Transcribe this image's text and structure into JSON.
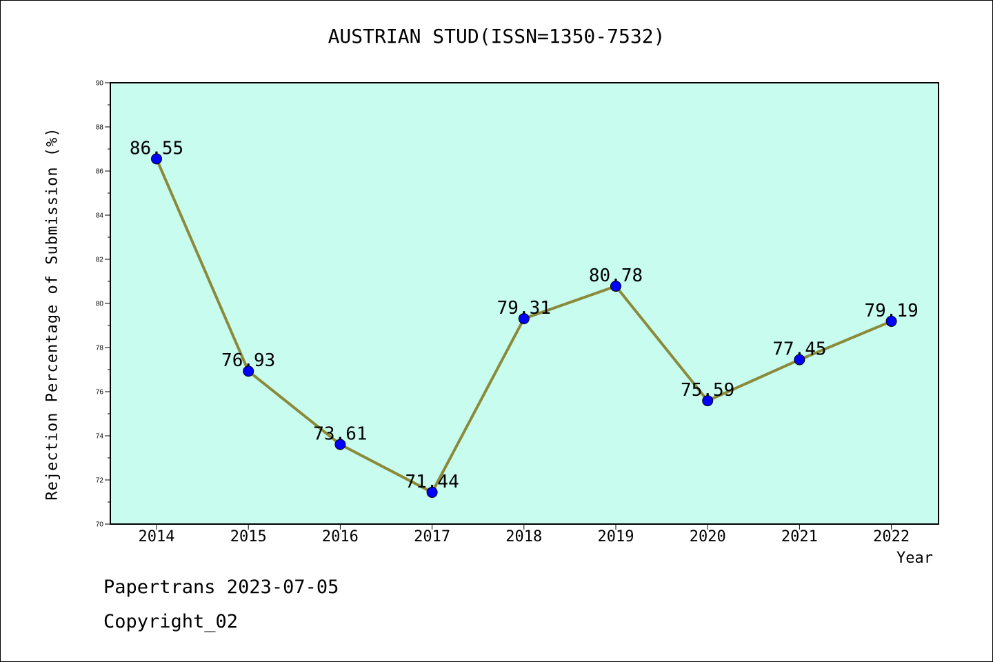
{
  "chart_data": {
    "type": "line",
    "title": "AUSTRIAN STUD(ISSN=1350-7532)",
    "xlabel": "Year",
    "ylabel": "Rejection Percentage of Submission (%)",
    "categories": [
      "2014",
      "2015",
      "2016",
      "2017",
      "2018",
      "2019",
      "2020",
      "2021",
      "2022"
    ],
    "values": [
      86.55,
      76.93,
      73.61,
      71.44,
      79.31,
      80.78,
      75.59,
      77.45,
      79.19
    ],
    "data_labels": [
      "86.55",
      "76.93",
      "73.61",
      "71.44",
      "79.31",
      "80.78",
      "75.59",
      "77.45",
      "79.19"
    ],
    "ylim": [
      70,
      90
    ],
    "yticks": [
      "70",
      "72",
      "74",
      "76",
      "78",
      "80",
      "82",
      "84",
      "86",
      "88",
      "90"
    ],
    "grid": false,
    "colors": {
      "plot_background": "#c8fcee",
      "line": "#8b8a3a",
      "marker": "#0000ff"
    }
  },
  "footer": {
    "line1": "Papertrans 2023-07-05",
    "line2": "Copyright_02"
  }
}
